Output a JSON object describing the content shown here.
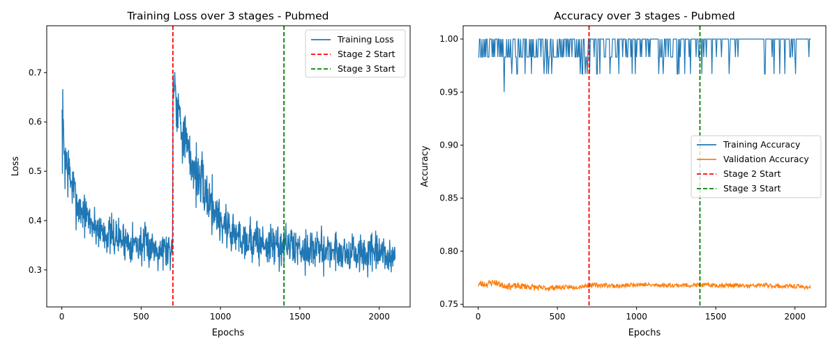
{
  "chart_data": [
    {
      "type": "line",
      "title": "Training Loss over 3 stages - Pubmed",
      "xlabel": "Epochs",
      "ylabel": "Loss",
      "xlim": [
        -95,
        2195
      ],
      "ylim": [
        0.225,
        0.795
      ],
      "xticks": [
        0,
        500,
        1000,
        1500,
        2000
      ],
      "yticks": [
        0.3,
        0.4,
        0.5,
        0.6,
        0.7
      ],
      "ytick_format": 1,
      "grid": false,
      "legend_position": "upper right",
      "colors": {
        "train": "#1f77b4",
        "stage2": "#ff0000",
        "stage3": "#008000"
      },
      "vlines": [
        {
          "name": "Stage 2 Start",
          "x": 700,
          "color": "#ff0000"
        },
        {
          "name": "Stage 3 Start",
          "x": 1400,
          "color": "#008000"
        }
      ],
      "legend": [
        "Training Loss",
        "Stage 2 Start",
        "Stage 3 Start"
      ],
      "series": [
        {
          "name": "Training Loss",
          "color": "#1f77b4",
          "noisy": true,
          "x": [
            0,
            20,
            50,
            100,
            150,
            200,
            300,
            400,
            500,
            600,
            699,
            700,
            720,
            750,
            800,
            900,
            1000,
            1100,
            1200,
            1300,
            1399,
            1400,
            1500,
            1600,
            1700,
            1800,
            1900,
            2000,
            2100
          ],
          "mean": [
            0.6,
            0.53,
            0.49,
            0.43,
            0.41,
            0.39,
            0.37,
            0.36,
            0.35,
            0.345,
            0.34,
            0.7,
            0.66,
            0.6,
            0.53,
            0.46,
            0.4,
            0.37,
            0.36,
            0.35,
            0.35,
            0.35,
            0.345,
            0.34,
            0.34,
            0.335,
            0.33,
            0.33,
            0.325
          ],
          "spread": [
            0.08,
            0.07,
            0.05,
            0.04,
            0.035,
            0.035,
            0.035,
            0.035,
            0.035,
            0.035,
            0.035,
            0.06,
            0.06,
            0.05,
            0.05,
            0.05,
            0.045,
            0.04,
            0.04,
            0.04,
            0.04,
            0.035,
            0.035,
            0.035,
            0.035,
            0.035,
            0.035,
            0.035,
            0.035
          ],
          "range": [
            0.25,
            0.77
          ]
        }
      ]
    },
    {
      "type": "line",
      "title": "Accuracy over 3 stages - Pubmed",
      "xlabel": "Epochs",
      "ylabel": "Accuracy",
      "xlim": [
        -95,
        2195
      ],
      "ylim": [
        0.7475,
        1.0125
      ],
      "xticks": [
        0,
        500,
        1000,
        1500,
        2000
      ],
      "yticks": [
        0.75,
        0.8,
        0.85,
        0.9,
        0.95,
        1.0
      ],
      "ytick_format": 2,
      "grid": false,
      "legend_position": "center right",
      "colors": {
        "train": "#1f77b4",
        "val": "#ff7f0e",
        "stage2": "#ff0000",
        "stage3": "#008000"
      },
      "vlines": [
        {
          "name": "Stage 2 Start",
          "x": 700,
          "color": "#ff0000"
        },
        {
          "name": "Stage 3 Start",
          "x": 1400,
          "color": "#008000"
        }
      ],
      "legend": [
        "Training Accuracy",
        "Validation Accuracy",
        "Stage 2 Start",
        "Stage 3 Start"
      ],
      "series": [
        {
          "name": "Training Accuracy",
          "color": "#1f77b4",
          "values_description_levels": [
            0.95,
            0.967,
            0.983,
            1.0
          ],
          "x_range": [
            0,
            2100
          ]
        },
        {
          "name": "Validation Accuracy",
          "color": "#ff7f0e",
          "x": [
            0,
            50,
            100,
            150,
            200,
            300,
            400,
            500,
            600,
            700,
            800,
            900,
            1000,
            1100,
            1200,
            1300,
            1400,
            1500,
            1600,
            1700,
            1800,
            1900,
            2000,
            2100
          ],
          "mean": [
            0.769,
            0.769,
            0.771,
            0.768,
            0.767,
            0.767,
            0.765,
            0.766,
            0.766,
            0.768,
            0.768,
            0.767,
            0.769,
            0.768,
            0.768,
            0.768,
            0.768,
            0.768,
            0.768,
            0.767,
            0.768,
            0.767,
            0.767,
            0.766
          ],
          "spread": [
            0.004,
            0.003,
            0.003,
            0.003,
            0.003,
            0.003,
            0.003,
            0.002,
            0.002,
            0.002,
            0.002,
            0.002,
            0.002,
            0.002,
            0.002,
            0.002,
            0.002,
            0.002,
            0.002,
            0.002,
            0.002,
            0.002,
            0.002,
            0.002
          ]
        }
      ]
    }
  ]
}
